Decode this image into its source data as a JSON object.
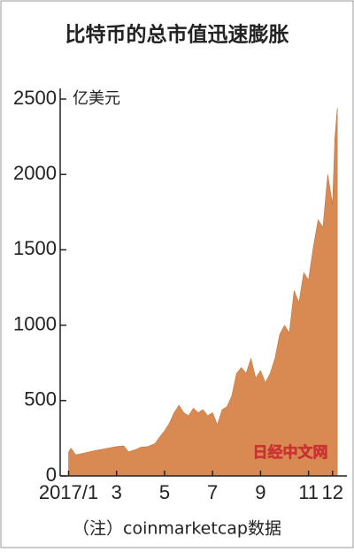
{
  "chart_data": {
    "type": "area",
    "title": "比特币的总市值迅速膨胀",
    "y_label": "亿美元",
    "note": "（注）coinmarketcap数据",
    "watermark": "日经中文网",
    "color": "#d98a52",
    "x": [
      1.0,
      1.1,
      1.3,
      1.6,
      2.0,
      2.5,
      3.0,
      3.3,
      3.5,
      3.8,
      4.0,
      4.3,
      4.6,
      4.8,
      5.0,
      5.2,
      5.4,
      5.6,
      5.8,
      6.0,
      6.2,
      6.4,
      6.6,
      6.8,
      7.0,
      7.2,
      7.4,
      7.6,
      7.8,
      8.0,
      8.2,
      8.4,
      8.6,
      8.8,
      9.0,
      9.2,
      9.4,
      9.6,
      9.8,
      10.0,
      10.2,
      10.4,
      10.6,
      10.8,
      11.0,
      11.2,
      11.4,
      11.6,
      11.8,
      12.0,
      12.1,
      12.2
    ],
    "values": [
      160,
      185,
      140,
      150,
      165,
      180,
      195,
      200,
      160,
      175,
      190,
      195,
      215,
      260,
      300,
      350,
      420,
      470,
      420,
      400,
      450,
      420,
      440,
      400,
      420,
      340,
      440,
      460,
      530,
      680,
      720,
      680,
      780,
      650,
      700,
      620,
      680,
      780,
      940,
      1000,
      950,
      1230,
      1150,
      1350,
      1300,
      1520,
      1700,
      1650,
      2000,
      1800,
      2250,
      2440
    ],
    "xlim": [
      0.65,
      12.6
    ],
    "xticks": [
      {
        "value": 1,
        "label": "2017/1"
      },
      3,
      5,
      7,
      9,
      11,
      12
    ],
    "ylim": [
      0,
      2500
    ],
    "yticks": [
      0,
      500,
      1000,
      1500,
      2000,
      2500
    ]
  }
}
